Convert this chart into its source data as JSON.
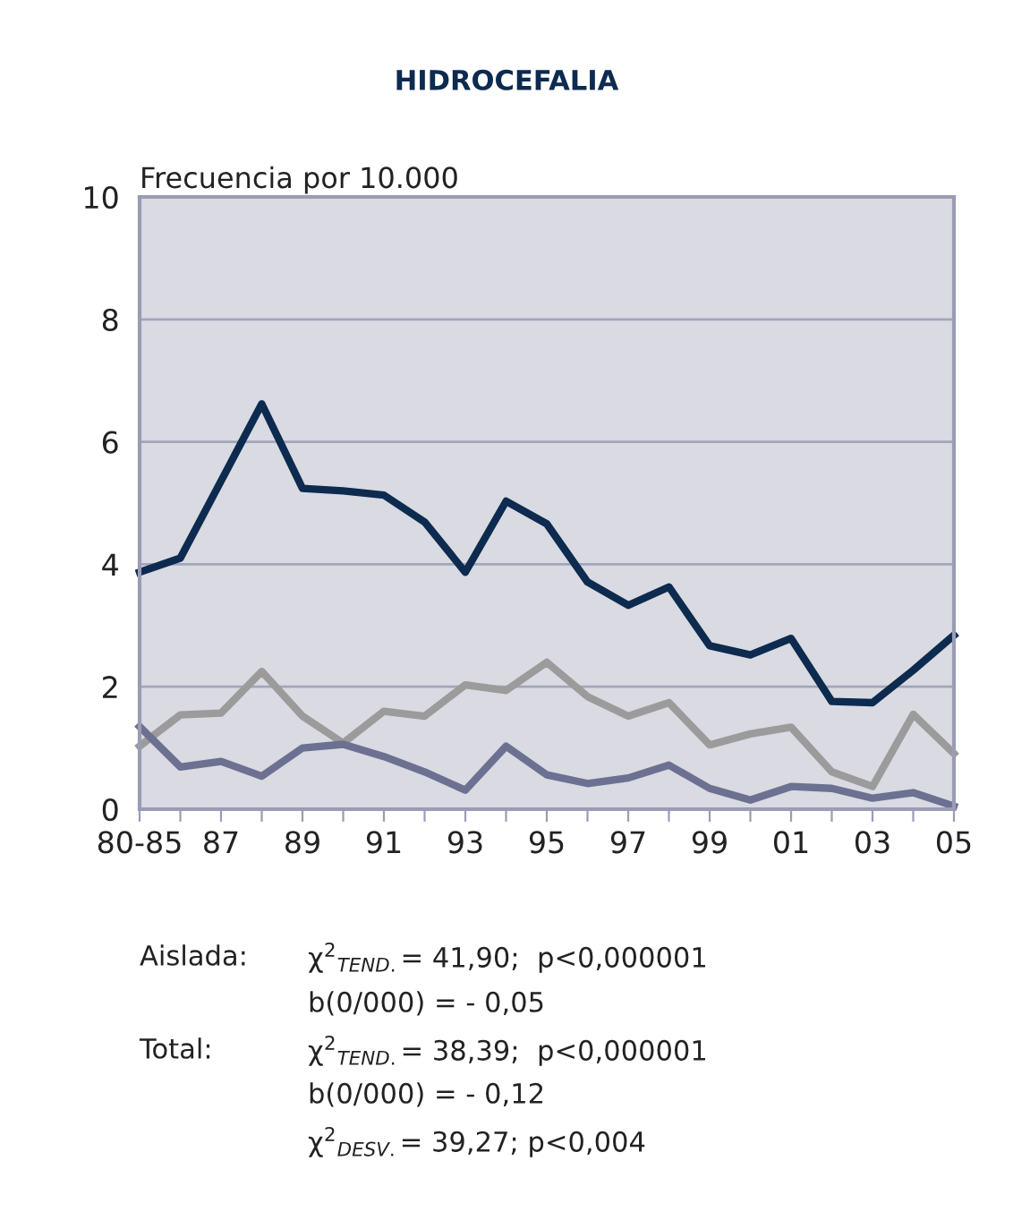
{
  "chart_data": {
    "type": "line",
    "title": "HIDROCEFALIA",
    "ylabel": "Frecuencia por 10.000",
    "categories": [
      "80-85",
      null,
      "87",
      null,
      "89",
      null,
      "91",
      null,
      "93",
      null,
      "95",
      null,
      "97",
      null,
      "99",
      null,
      "01",
      null,
      "03",
      null,
      "05"
    ],
    "series": [
      {
        "color": "#0d2a4f",
        "values": [
          3.87,
          4.1,
          5.36,
          6.62,
          5.24,
          5.2,
          5.13,
          4.69,
          3.87,
          5.03,
          4.66,
          3.71,
          3.33,
          3.63,
          2.67,
          2.52,
          2.79,
          1.76,
          1.74,
          2.27,
          2.84
        ]
      },
      {
        "color": "#9b9b9b",
        "values": [
          1.03,
          1.54,
          1.57,
          2.25,
          1.52,
          1.08,
          1.6,
          1.52,
          2.03,
          1.94,
          2.4,
          1.84,
          1.52,
          1.74,
          1.05,
          1.23,
          1.34,
          0.61,
          0.37,
          1.55,
          0.91
        ]
      },
      {
        "color": "#6c7091",
        "values": [
          1.35,
          0.69,
          0.78,
          0.54,
          1.0,
          1.06,
          0.86,
          0.61,
          0.31,
          1.03,
          0.56,
          0.42,
          0.51,
          0.72,
          0.34,
          0.15,
          0.37,
          0.34,
          0.18,
          0.27,
          0.05
        ]
      }
    ],
    "ylim": [
      0,
      10
    ],
    "yticks": [
      0,
      2,
      4,
      6,
      8,
      10
    ],
    "grid": "y",
    "marker": "none",
    "line_style": "solid",
    "annotations": [
      "Aislada:",
      "χ$^{2}$$_{TEND.}$= 41,90;  p<0,000001",
      "b(0/000) = - 0,05",
      "Total:",
      "χ$^{2}$$_{TEND.}$= 38,39;  p<0,000001",
      "b(0/000) = - 0,12",
      "χ$^{2}$$_{DESV.}$= 39,27; p<0,004"
    ]
  }
}
